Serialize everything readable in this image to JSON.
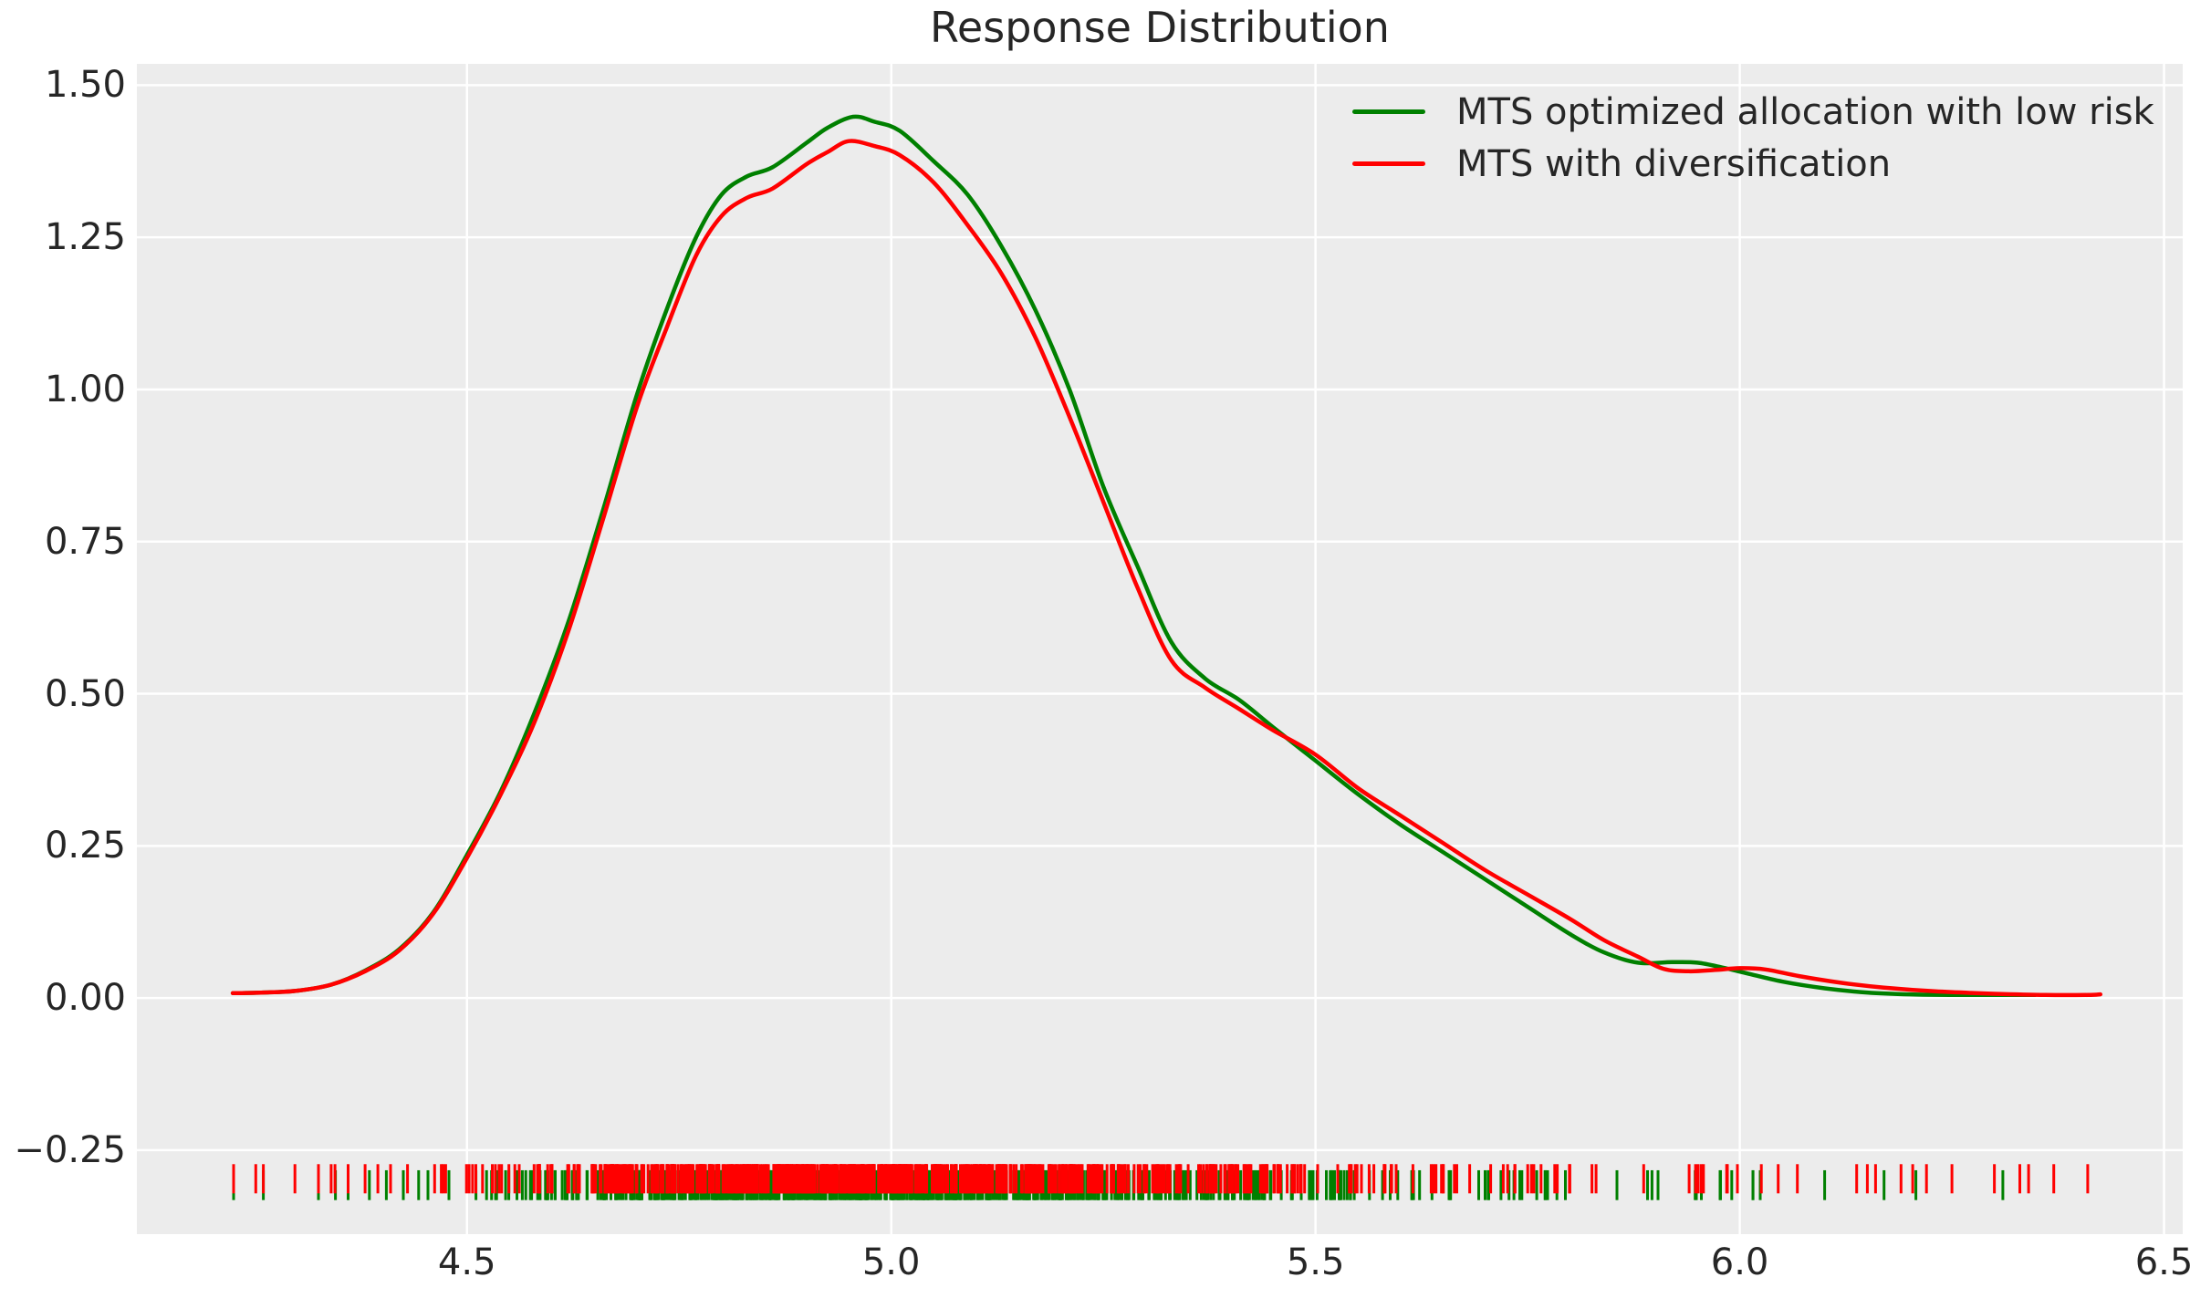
{
  "title": "Response Distribution",
  "colors": {
    "plot_bg": "#ececec",
    "grid": "#ffffff",
    "text": "#262626",
    "green": "#008000",
    "red": "#ff0000"
  },
  "legend": {
    "items": [
      {
        "label": "MTS optimized allocation with low risk",
        "color": "#008000"
      },
      {
        "label": "MTS with diversification",
        "color": "#ff0000"
      }
    ]
  },
  "axes": {
    "x": {
      "min": 4.111,
      "max": 6.522,
      "ticks": [
        4.5,
        5.0,
        5.5,
        6.0,
        6.5
      ],
      "tick_labels": [
        "4.5",
        "5.0",
        "5.5",
        "6.0",
        "6.5"
      ]
    },
    "y": {
      "min": -0.388,
      "max": 1.535,
      "ticks": [
        -0.25,
        0.0,
        0.25,
        0.5,
        0.75,
        1.0,
        1.25,
        1.5
      ],
      "tick_labels": [
        "−0.25",
        "0.00",
        "0.25",
        "0.50",
        "0.75",
        "1.00",
        "1.25",
        "1.50"
      ]
    }
  },
  "chart_data": {
    "type": "line",
    "title": "Response Distribution",
    "xlabel": "",
    "ylabel": "",
    "xlim": [
      4.111,
      6.522
    ],
    "ylim": [
      -0.388,
      1.535
    ],
    "grid": true,
    "legend_position": "upper right",
    "series": [
      {
        "name": "MTS optimized allocation with low risk",
        "color": "#008000",
        "x": [
          4.224,
          4.26,
          4.3,
          4.34,
          4.38,
          4.42,
          4.46,
          4.5,
          4.54,
          4.58,
          4.62,
          4.66,
          4.7,
          4.735,
          4.77,
          4.8,
          4.83,
          4.86,
          4.9,
          4.925,
          4.955,
          4.98,
          5.01,
          5.05,
          5.09,
          5.13,
          5.17,
          5.21,
          5.25,
          5.29,
          5.33,
          5.37,
          5.41,
          5.45,
          5.5,
          5.55,
          5.6,
          5.65,
          5.7,
          5.75,
          5.8,
          5.84,
          5.88,
          5.92,
          5.95,
          5.98,
          6.01,
          6.05,
          6.1,
          6.15,
          6.2,
          6.26,
          6.31,
          6.348
        ],
        "y": [
          0.008,
          0.009,
          0.012,
          0.022,
          0.045,
          0.08,
          0.14,
          0.235,
          0.34,
          0.47,
          0.62,
          0.8,
          0.99,
          1.13,
          1.25,
          1.32,
          1.35,
          1.365,
          1.405,
          1.43,
          1.448,
          1.44,
          1.425,
          1.375,
          1.32,
          1.235,
          1.13,
          1.0,
          0.84,
          0.71,
          0.585,
          0.525,
          0.49,
          0.445,
          0.39,
          0.335,
          0.285,
          0.24,
          0.195,
          0.15,
          0.105,
          0.075,
          0.058,
          0.059,
          0.058,
          0.05,
          0.04,
          0.027,
          0.016,
          0.009,
          0.006,
          0.005,
          0.005,
          0.005
        ]
      },
      {
        "name": "MTS with diversification",
        "color": "#ff0000",
        "x": [
          4.224,
          4.26,
          4.3,
          4.34,
          4.38,
          4.42,
          4.46,
          4.5,
          4.54,
          4.58,
          4.62,
          4.66,
          4.7,
          4.735,
          4.77,
          4.8,
          4.83,
          4.86,
          4.9,
          4.925,
          4.95,
          4.98,
          5.01,
          5.05,
          5.09,
          5.13,
          5.17,
          5.21,
          5.25,
          5.29,
          5.33,
          5.37,
          5.41,
          5.45,
          5.5,
          5.55,
          5.6,
          5.65,
          5.7,
          5.75,
          5.8,
          5.84,
          5.88,
          5.91,
          5.94,
          5.97,
          6.0,
          6.03,
          6.07,
          6.12,
          6.17,
          6.23,
          6.3,
          6.36,
          6.41,
          6.425
        ],
        "y": [
          0.008,
          0.009,
          0.012,
          0.022,
          0.044,
          0.078,
          0.138,
          0.23,
          0.335,
          0.455,
          0.605,
          0.785,
          0.97,
          1.1,
          1.22,
          1.285,
          1.315,
          1.33,
          1.37,
          1.39,
          1.408,
          1.4,
          1.385,
          1.34,
          1.27,
          1.19,
          1.085,
          0.955,
          0.815,
          0.675,
          0.555,
          0.51,
          0.475,
          0.44,
          0.4,
          0.345,
          0.3,
          0.255,
          0.21,
          0.17,
          0.13,
          0.095,
          0.068,
          0.048,
          0.044,
          0.046,
          0.049,
          0.047,
          0.036,
          0.025,
          0.017,
          0.011,
          0.007,
          0.005,
          0.005,
          0.006
        ]
      }
    ],
    "rug": {
      "green": {
        "count": 650,
        "seed": 42,
        "y_top": -0.283,
        "y_bottom": -0.332,
        "extra_x": [
          4.225,
          4.26,
          4.325,
          4.345,
          4.36,
          4.385,
          4.405,
          4.425,
          6.1,
          6.17,
          6.31
        ]
      },
      "red": {
        "count": 680,
        "seed": 1337,
        "y_top": -0.273,
        "y_bottom": -0.321,
        "extra_x": [
          4.225,
          4.26,
          4.325,
          4.34,
          4.36,
          4.38,
          4.395,
          4.41,
          4.43,
          6.16,
          6.19,
          6.22,
          6.25,
          6.3,
          6.33,
          6.37,
          6.41
        ]
      }
    }
  }
}
